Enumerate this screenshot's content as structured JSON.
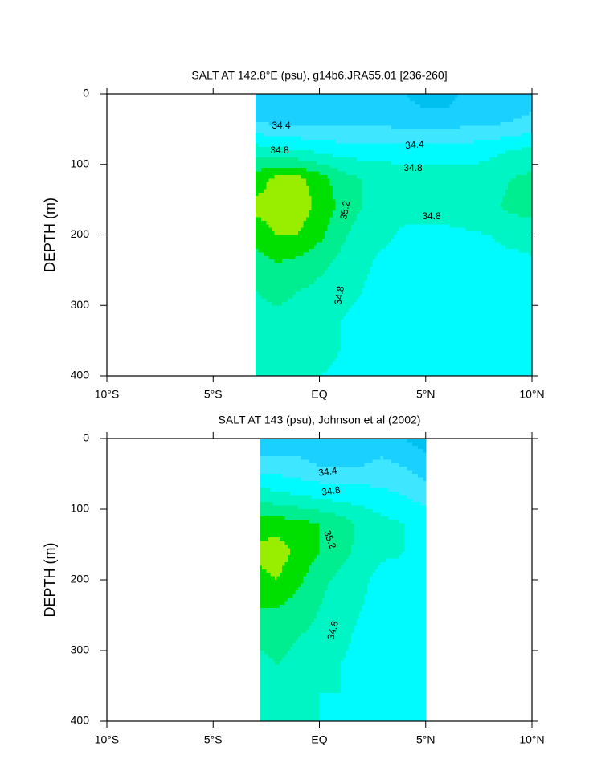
{
  "chart_data": [
    {
      "type": "contour",
      "title": "SALT AT 142.8°E (psu), g14b6.JRA55.01 [236-260]",
      "y_label": "DEPTH (m)",
      "xlim": [
        -10,
        10
      ],
      "ylim": [
        0,
        400
      ],
      "y_inverted": true,
      "xticks": [
        {
          "value": -10,
          "label": "10°S"
        },
        {
          "value": -5,
          "label": "5°S"
        },
        {
          "value": 0,
          "label": "EQ"
        },
        {
          "value": 5,
          "label": "5°N"
        },
        {
          "value": 10,
          "label": "10°N"
        }
      ],
      "yticks": [
        0,
        100,
        200,
        300,
        400
      ],
      "levels": [
        34.2,
        34.4,
        34.6,
        34.8,
        35.0,
        35.2,
        35.4
      ],
      "colors": [
        "#00c0f0",
        "#1ad0ff",
        "#3ee6ff",
        "#00fbff",
        "#00f5c4",
        "#00ee90",
        "#00e000",
        "#99ee00"
      ],
      "x": [
        -3,
        -2,
        -1,
        0,
        1,
        2,
        3,
        4,
        5,
        6,
        7,
        8,
        9,
        10
      ],
      "y": [
        0,
        40,
        80,
        120,
        160,
        200,
        240,
        280,
        320,
        360,
        400
      ],
      "z": [
        [
          34.3,
          34.3,
          34.3,
          34.3,
          34.3,
          34.3,
          34.3,
          34.2,
          34.1,
          34.1,
          34.3,
          34.3,
          34.3,
          34.3
        ],
        [
          34.4,
          34.35,
          34.35,
          34.35,
          34.35,
          34.35,
          34.35,
          34.3,
          34.3,
          34.3,
          34.35,
          34.35,
          34.4,
          34.45
        ],
        [
          34.9,
          34.85,
          34.8,
          34.75,
          34.7,
          34.7,
          34.7,
          34.7,
          34.7,
          34.7,
          34.7,
          34.75,
          34.8,
          34.85
        ],
        [
          35.3,
          35.45,
          35.45,
          35.3,
          35.1,
          35.0,
          34.95,
          34.9,
          34.9,
          34.9,
          34.9,
          34.9,
          35.0,
          35.05
        ],
        [
          35.45,
          35.5,
          35.5,
          35.35,
          35.15,
          35.0,
          34.95,
          34.9,
          34.9,
          34.9,
          34.9,
          34.95,
          35.05,
          35.1
        ],
        [
          35.3,
          35.4,
          35.4,
          35.25,
          35.05,
          34.9,
          34.85,
          34.75,
          34.75,
          34.75,
          34.78,
          34.8,
          34.85,
          34.85
        ],
        [
          35.1,
          35.2,
          35.15,
          35.05,
          34.95,
          34.85,
          34.75,
          34.7,
          34.7,
          34.7,
          34.72,
          34.75,
          34.75,
          34.78
        ],
        [
          35.0,
          35.05,
          35.0,
          34.95,
          34.85,
          34.8,
          34.7,
          34.7,
          34.7,
          34.7,
          34.7,
          34.72,
          34.72,
          34.72
        ],
        [
          34.95,
          34.95,
          34.95,
          34.9,
          34.8,
          34.75,
          34.7,
          34.7,
          34.7,
          34.7,
          34.7,
          34.7,
          34.7,
          34.7
        ],
        [
          34.9,
          34.9,
          34.85,
          34.85,
          34.8,
          34.75,
          34.7,
          34.7,
          34.7,
          34.7,
          34.7,
          34.7,
          34.7,
          34.7
        ],
        [
          34.85,
          34.85,
          34.8,
          34.8,
          34.78,
          34.75,
          34.72,
          34.7,
          34.7,
          34.7,
          34.7,
          34.7,
          34.7,
          34.7
        ]
      ]
    },
    {
      "type": "contour",
      "title": "SALT AT 143 (psu), Johnson et al (2002)",
      "y_label": "DEPTH (m)",
      "xlim": [
        -10,
        10
      ],
      "ylim": [
        0,
        400
      ],
      "y_inverted": true,
      "xticks": [
        {
          "value": -10,
          "label": "10°S"
        },
        {
          "value": -5,
          "label": "5°S"
        },
        {
          "value": 0,
          "label": "EQ"
        },
        {
          "value": 5,
          "label": "5°N"
        },
        {
          "value": 10,
          "label": "10°N"
        }
      ],
      "yticks": [
        0,
        100,
        200,
        300,
        400
      ],
      "levels": [
        34.2,
        34.4,
        34.6,
        34.8,
        35.0,
        35.2,
        35.4
      ],
      "colors": [
        "#00c0f0",
        "#1ad0ff",
        "#3ee6ff",
        "#00fbff",
        "#00f5c4",
        "#00ee90",
        "#00e000",
        "#99ee00"
      ],
      "x": [
        -2.8,
        -2,
        -1,
        0,
        1,
        2,
        3,
        4,
        5
      ],
      "y": [
        0,
        40,
        80,
        120,
        160,
        200,
        240,
        280,
        320,
        360,
        400
      ],
      "z": [
        [
          34.2,
          34.2,
          34.3,
          34.3,
          34.3,
          34.3,
          34.3,
          34.2,
          34.1
        ],
        [
          34.5,
          34.5,
          34.45,
          34.4,
          34.4,
          34.4,
          34.45,
          34.4,
          34.3
        ],
        [
          34.9,
          34.85,
          34.8,
          34.75,
          34.7,
          34.7,
          34.65,
          34.6,
          34.5
        ],
        [
          35.3,
          35.3,
          35.25,
          35.2,
          35.1,
          34.95,
          34.85,
          34.8,
          34.75
        ],
        [
          35.45,
          35.5,
          35.35,
          35.2,
          35.05,
          34.95,
          34.85,
          34.8,
          34.75
        ],
        [
          35.35,
          35.4,
          35.25,
          35.05,
          34.95,
          34.85,
          34.7,
          34.75,
          34.75
        ],
        [
          35.2,
          35.2,
          35.1,
          35.0,
          34.9,
          34.8,
          34.7,
          34.7,
          34.72
        ],
        [
          35.05,
          35.05,
          35.0,
          34.95,
          34.85,
          34.75,
          34.7,
          34.7,
          34.72
        ],
        [
          34.95,
          35.0,
          34.95,
          34.85,
          34.8,
          34.75,
          34.7,
          34.7,
          34.72
        ],
        [
          34.9,
          34.9,
          34.85,
          34.8,
          34.8,
          34.75,
          34.72,
          34.7,
          34.72
        ],
        [
          34.85,
          34.85,
          34.8,
          34.8,
          34.78,
          34.75,
          34.72,
          34.7,
          34.72
        ]
      ]
    }
  ]
}
